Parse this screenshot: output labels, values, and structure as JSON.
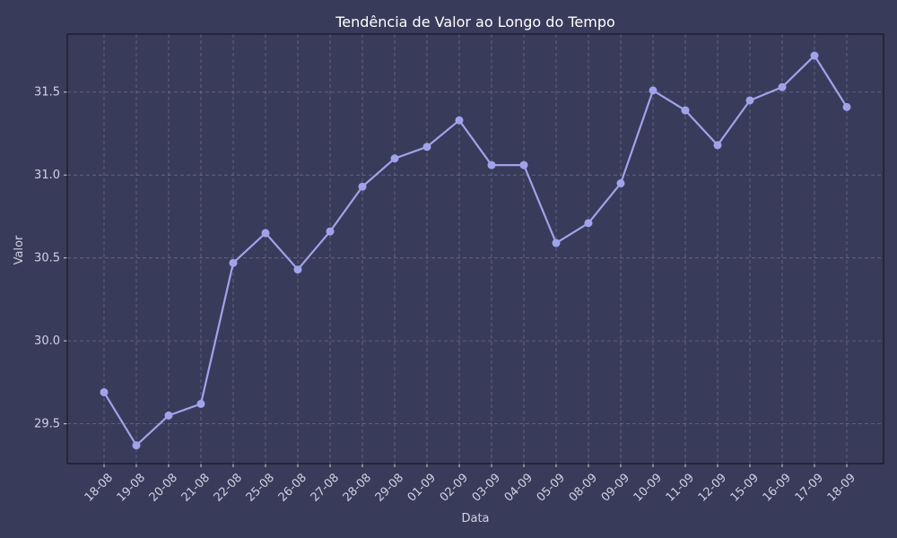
{
  "chart_data": {
    "type": "line",
    "title": "Tendência de Valor ao Longo do Tempo",
    "xlabel": "Data",
    "ylabel": "Valor",
    "categories": [
      "18-08",
      "19-08",
      "20-08",
      "21-08",
      "22-08",
      "25-08",
      "26-08",
      "27-08",
      "28-08",
      "29-08",
      "01-09",
      "02-09",
      "03-09",
      "04-09",
      "05-09",
      "08-09",
      "09-09",
      "10-09",
      "11-09",
      "12-09",
      "15-09",
      "16-09",
      "17-09",
      "18-09"
    ],
    "series": [
      {
        "values": [
          29.69,
          29.37,
          29.55,
          29.62,
          30.47,
          30.65,
          30.43,
          30.66,
          30.93,
          31.1,
          31.17,
          31.33,
          31.06,
          31.06,
          30.59,
          30.71,
          30.95,
          31.51,
          31.39,
          31.18,
          31.45,
          31.53,
          31.72,
          31.41
        ],
        "color": "#a0a3ea",
        "marker": "circle"
      }
    ],
    "yticks": [
      29.5,
      30.0,
      30.5,
      31.0,
      31.5
    ],
    "ytick_labels": [
      "29.5",
      "30.0",
      "30.5",
      "31.0",
      "31.5"
    ],
    "ylim": [
      29.26,
      31.85
    ],
    "grid": true,
    "legend": "none"
  },
  "colors": {
    "background": "#393b5a",
    "line": "#a0a3ea",
    "text": "#d0d2e4",
    "title": "#ffffff"
  }
}
